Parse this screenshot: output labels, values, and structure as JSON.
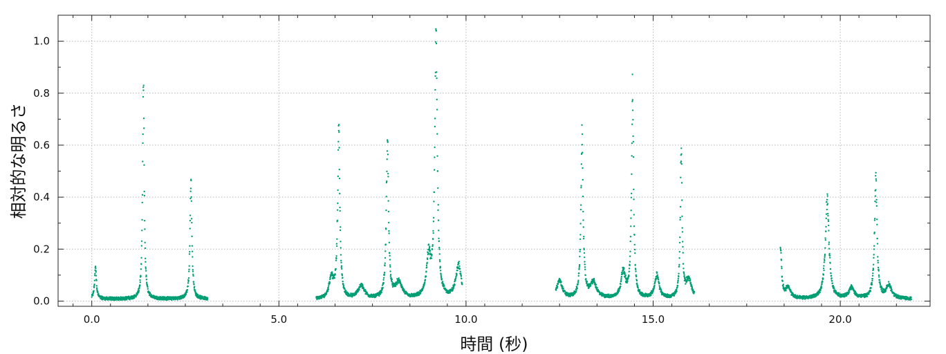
{
  "chart_data": {
    "type": "scatter",
    "title": "",
    "xlabel": "時間 (秒)",
    "ylabel": "相対的な明るさ",
    "xlim": [
      -0.9,
      22.4
    ],
    "ylim": [
      -0.02,
      1.1
    ],
    "xticks": [
      0,
      5,
      10,
      15,
      20
    ],
    "xtick_labels": [
      "0.0",
      "5.0",
      "10.0",
      "15.0",
      "20.0"
    ],
    "yticks": [
      0,
      0.2,
      0.4,
      0.6,
      0.8,
      1.0
    ],
    "ytick_labels": [
      "0.0",
      "0.2",
      "0.4",
      "0.6",
      "0.8",
      "1.0"
    ],
    "grid": true,
    "marker_color": "#009e73",
    "series": [
      {
        "segments": [
          {
            "x_start": 0.0,
            "x_end": 3.1,
            "baseline": 0.008
          },
          {
            "x_start": 6.0,
            "x_end": 9.9,
            "baseline": 0.006
          },
          {
            "x_start": 12.4,
            "x_end": 16.1,
            "baseline": 0.008
          },
          {
            "x_start": 18.4,
            "x_end": 21.9,
            "baseline": 0.008
          }
        ],
        "peaks": [
          {
            "t": 0.1,
            "amp": 0.12,
            "w": 0.05
          },
          {
            "t": 1.38,
            "amp": 0.81,
            "w": 0.045
          },
          {
            "t": 2.65,
            "amp": 0.46,
            "w": 0.05
          },
          {
            "t": 6.4,
            "amp": 0.08,
            "w": 0.12
          },
          {
            "t": 6.6,
            "amp": 0.64,
            "w": 0.06
          },
          {
            "t": 7.2,
            "amp": 0.05,
            "w": 0.18
          },
          {
            "t": 7.9,
            "amp": 0.6,
            "w": 0.06
          },
          {
            "t": 8.2,
            "amp": 0.06,
            "w": 0.2
          },
          {
            "t": 9.0,
            "amp": 0.15,
            "w": 0.12
          },
          {
            "t": 9.2,
            "amp": 1.0,
            "w": 0.07
          },
          {
            "t": 9.8,
            "amp": 0.13,
            "w": 0.15
          },
          {
            "t": 12.5,
            "amp": 0.07,
            "w": 0.15
          },
          {
            "t": 13.1,
            "amp": 0.61,
            "w": 0.06
          },
          {
            "t": 13.4,
            "amp": 0.06,
            "w": 0.18
          },
          {
            "t": 14.2,
            "amp": 0.1,
            "w": 0.12
          },
          {
            "t": 14.45,
            "amp": 0.8,
            "w": 0.055
          },
          {
            "t": 15.1,
            "amp": 0.09,
            "w": 0.12
          },
          {
            "t": 15.75,
            "amp": 0.55,
            "w": 0.05
          },
          {
            "t": 15.95,
            "amp": 0.07,
            "w": 0.15
          },
          {
            "t": 18.4,
            "amp": 0.2,
            "w": 0.06
          },
          {
            "t": 18.6,
            "amp": 0.04,
            "w": 0.15
          },
          {
            "t": 19.65,
            "amp": 0.38,
            "w": 0.1
          },
          {
            "t": 20.3,
            "amp": 0.04,
            "w": 0.15
          },
          {
            "t": 20.95,
            "amp": 0.45,
            "w": 0.07
          },
          {
            "t": 21.3,
            "amp": 0.05,
            "w": 0.15
          }
        ]
      }
    ]
  }
}
